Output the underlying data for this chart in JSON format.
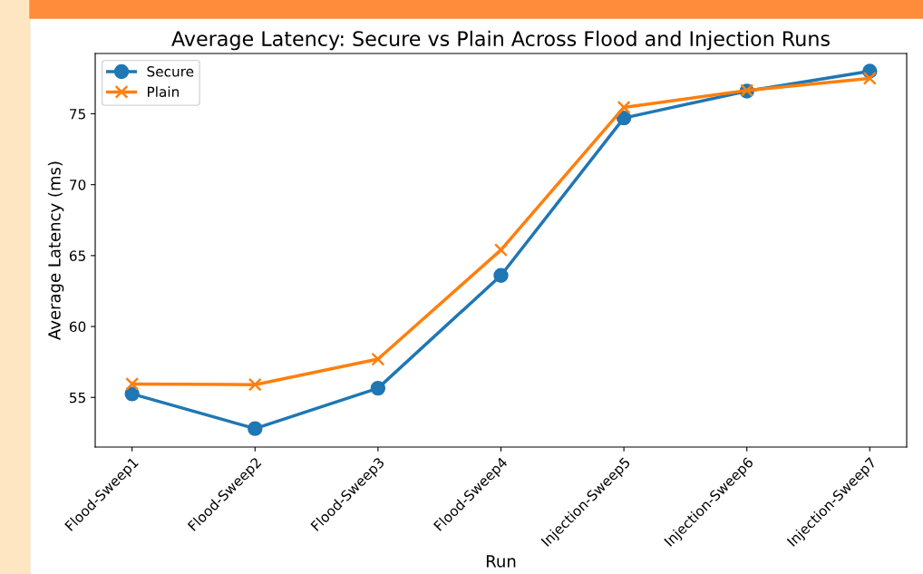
{
  "chart_data": {
    "type": "line",
    "title": "Average Latency: Secure vs Plain Across Flood and Injection Runs",
    "xlabel": "Run",
    "ylabel": "Average Latency (ms)",
    "categories": [
      "Flood-Sweep1",
      "Flood-Sweep2",
      "Flood-Sweep3",
      "Flood-Sweep4",
      "Injection-Sweep5",
      "Injection-Sweep6",
      "Injection-Sweep7"
    ],
    "series": [
      {
        "name": "Secure",
        "color": "#1f77b4",
        "marker": "circle",
        "values": [
          55.25,
          52.8,
          55.65,
          63.6,
          74.7,
          76.6,
          78.0
        ]
      },
      {
        "name": "Plain",
        "color": "#ff7f0e",
        "marker": "cross",
        "values": [
          55.95,
          55.9,
          57.7,
          65.4,
          75.45,
          76.65,
          77.5
        ]
      }
    ],
    "ylim": [
      51.5,
      79.25
    ],
    "yticks": [
      55,
      60,
      65,
      70,
      75
    ],
    "grid": false,
    "legend": "top left",
    "line_style": "solid"
  }
}
